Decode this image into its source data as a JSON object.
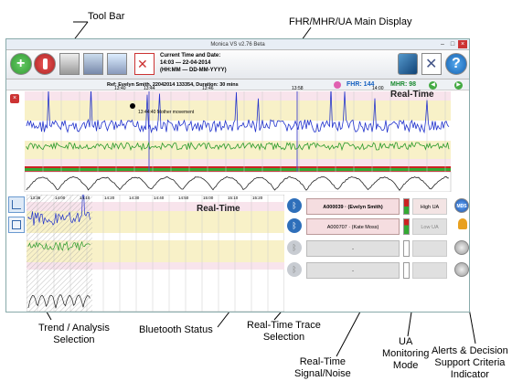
{
  "callouts": {
    "tool_bar": "Tool Bar",
    "main_display": "FHR/MHR/UA Main Display",
    "trend": "Trend / Analysis\nSelection",
    "bluetooth": "Bluetooth Status",
    "trace_sel": "Real-Time Trace\nSelection",
    "signal": "Real-Time\nSignal/Noise",
    "ua_mode": "UA\nMonitoring\nMode",
    "alerts": "Alerts & Decision\nSupport Criteria\nIndicator"
  },
  "window": {
    "title": "Monica VS v2.76 Beta",
    "time_label": "Current Time and Date:",
    "time_value": "14:03 — 22-04-2014",
    "time_format": "(HH:MM — DD-MM-YYYY)"
  },
  "info": {
    "reference": "Ref: Evelyn Smith, 22042014 133354, Duration: 30 mins",
    "fhr_label": "FHR:",
    "fhr_value": "144",
    "mhr_label": "MHR:",
    "mhr_value": "98"
  },
  "main": {
    "mode_label": "Real-Time",
    "annotation": "13:44:40 Mother movement",
    "times": [
      "13:40",
      "13:44",
      "13:46",
      "13:58",
      "14:00"
    ]
  },
  "lower": {
    "mode_label": "Real-Time",
    "times": [
      "13:36",
      "14:00",
      "14:10",
      "14:20",
      "14:30",
      "14:40",
      "14:50",
      "15:00",
      "15:10",
      "15:20"
    ]
  },
  "traces": [
    {
      "id": "A000039 · (Evelyn Smith)",
      "ua": "High UA",
      "active": true
    },
    {
      "id": "A000707 · (Kate Moss)",
      "ua": "Low UA",
      "active": false
    },
    {
      "id": "-",
      "ua": "",
      "active": false
    },
    {
      "id": "-",
      "ua": "",
      "active": false
    }
  ],
  "alert_badge": "MDS"
}
